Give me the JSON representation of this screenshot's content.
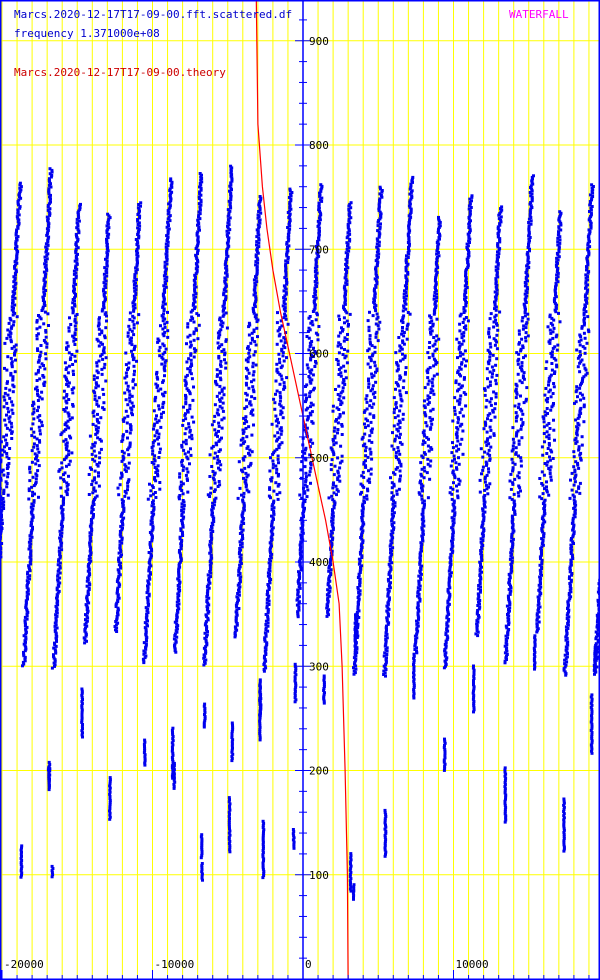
{
  "header": {
    "filename": "Marcs.2020-12-17T17-09-00.fft.scattered.df",
    "frequency": "frequency 1.371000e+08",
    "theory": "Marcs.2020-12-17T17-09-00.theory",
    "mode": "WATERFALL"
  },
  "chart_data": {
    "type": "scatter",
    "title": "",
    "xlabel": "",
    "ylabel": "",
    "xlim": [
      -20000,
      20000
    ],
    "ylim": [
      0,
      940
    ],
    "x_ticks": [
      -20000,
      -10000,
      0,
      10000
    ],
    "x_tick_labels": [
      "-20000",
      "-10000",
      "0",
      "10000"
    ],
    "y_ticks": [
      100,
      200,
      300,
      400,
      500,
      600,
      700,
      800,
      900
    ],
    "y_tick_labels": [
      "100",
      "200",
      "300",
      "400",
      "500",
      "600",
      "700",
      "800",
      "900"
    ],
    "grid": true,
    "colors": {
      "background": "#ffffff",
      "grid": "#ffff00",
      "axis": "#0000ff",
      "points": "#0000ee",
      "theory": "#ff0000"
    },
    "scatter_tracks": {
      "count": 20,
      "x_start": -19600,
      "x_spacing": 2000,
      "x_drift_per_track": -1800,
      "y_range": [
        320,
        790
      ],
      "description_note": ""
    },
    "theory_curve": [
      [
        -3100,
        940
      ],
      [
        -3000,
        820
      ],
      [
        -2700,
        760
      ],
      [
        -2400,
        720
      ],
      [
        -2000,
        680
      ],
      [
        -1500,
        640
      ],
      [
        -900,
        600
      ],
      [
        -300,
        560
      ],
      [
        300,
        520
      ],
      [
        900,
        480
      ],
      [
        1500,
        440
      ],
      [
        2000,
        400
      ],
      [
        2400,
        360
      ],
      [
        2600,
        300
      ],
      [
        2800,
        200
      ],
      [
        2950,
        100
      ],
      [
        3000,
        0
      ]
    ]
  }
}
